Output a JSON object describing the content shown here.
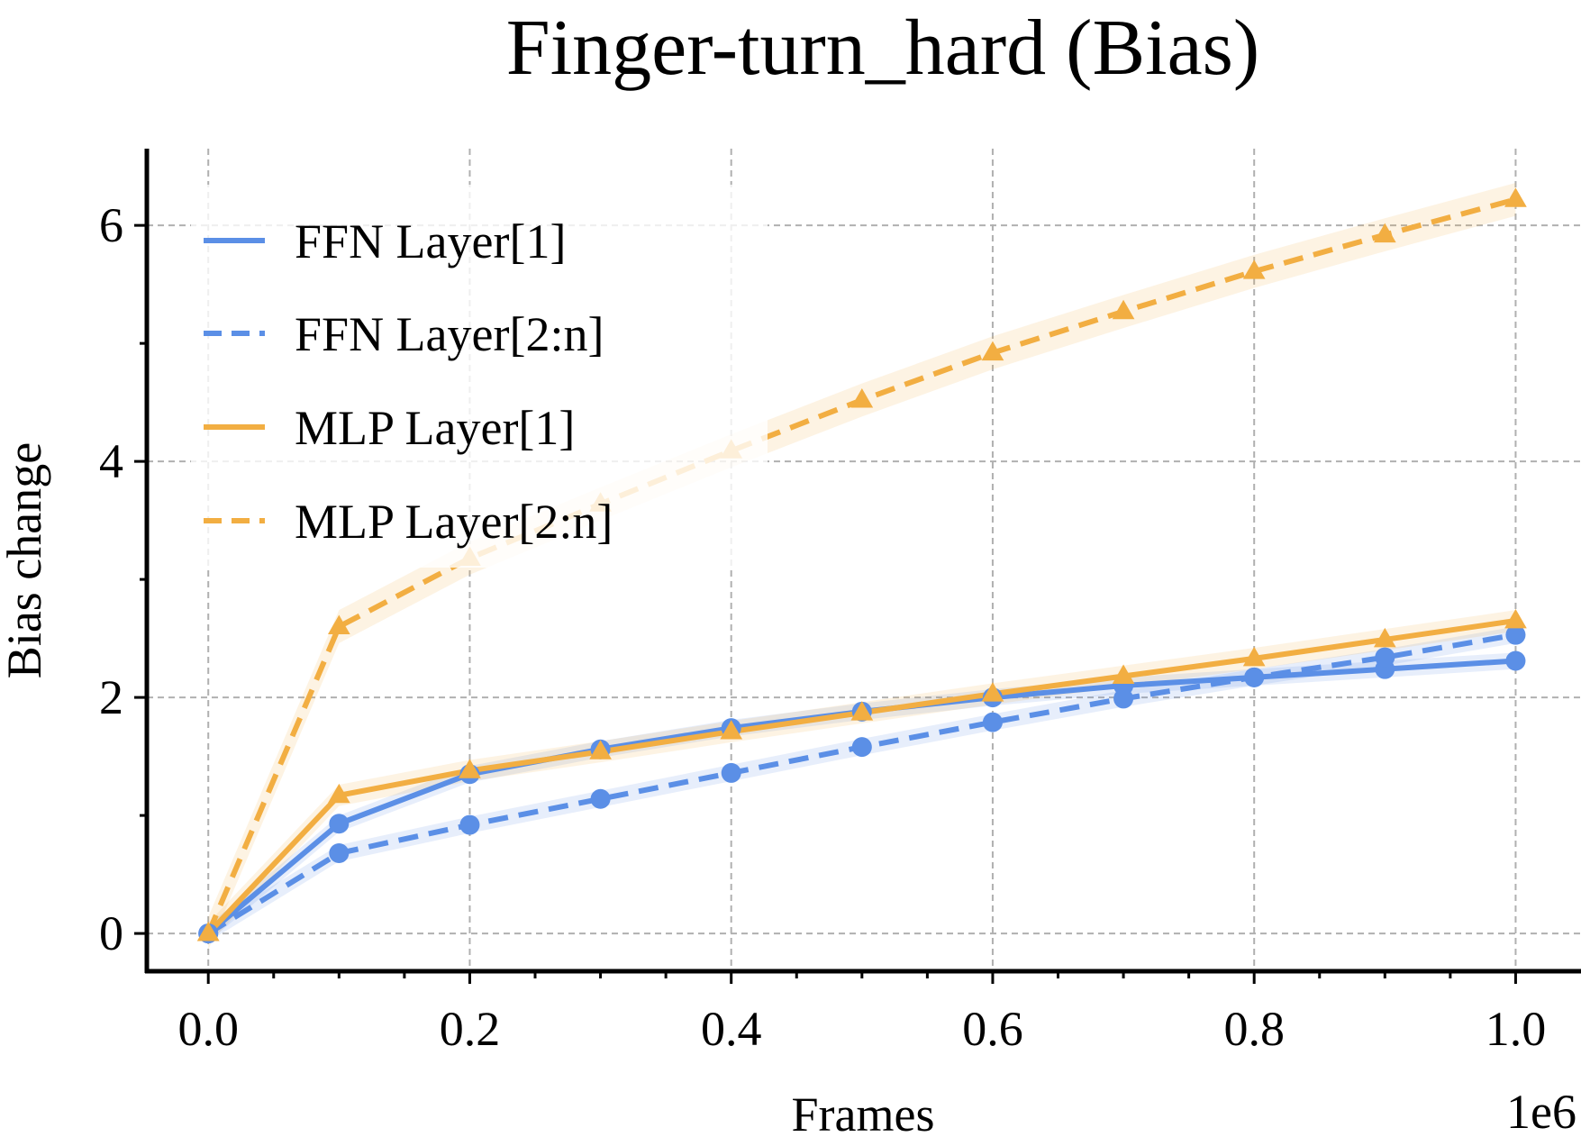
{
  "chart_data": {
    "type": "line",
    "title": "Finger-turn_hard (Bias)",
    "xlabel": "Frames",
    "ylabel": "Bias change",
    "x_offset_label": "1e6",
    "xlim": [
      -0.047,
      1.05
    ],
    "ylim": [
      -0.32,
      6.65
    ],
    "x_ticks": [
      0.0,
      0.2,
      0.4,
      0.6,
      0.8,
      1.0
    ],
    "x_tick_labels": [
      "0.0",
      "0.2",
      "0.4",
      "0.6",
      "0.8",
      "1.0"
    ],
    "x_minor_ticks": [
      0.05,
      0.1,
      0.15,
      0.25,
      0.3,
      0.35,
      0.45,
      0.5,
      0.55,
      0.65,
      0.7,
      0.75,
      0.85,
      0.9,
      0.95
    ],
    "y_ticks": [
      0,
      2,
      4,
      6
    ],
    "y_tick_labels": [
      "0",
      "2",
      "4",
      "6"
    ],
    "y_minor_ticks": [
      1,
      3,
      5
    ],
    "grid": true,
    "legend_position": "top-left",
    "x": [
      0.0,
      0.1,
      0.2,
      0.3,
      0.4,
      0.5,
      0.6,
      0.7,
      0.8,
      0.9,
      1.0
    ],
    "series": [
      {
        "name": "FFN Layer[1]",
        "color": "#5b8fe6",
        "linestyle": "solid",
        "marker": "circle",
        "values": [
          0.0,
          0.93,
          1.35,
          1.56,
          1.74,
          1.88,
          2.0,
          2.1,
          2.17,
          2.24,
          2.31
        ],
        "band": 0.07
      },
      {
        "name": "FFN Layer[2:n]",
        "color": "#5b8fe6",
        "linestyle": "dashed",
        "marker": "circle",
        "values": [
          0.0,
          0.68,
          0.92,
          1.14,
          1.36,
          1.58,
          1.79,
          1.99,
          2.17,
          2.34,
          2.53
        ],
        "band": 0.07
      },
      {
        "name": "MLP Layer[1]",
        "color": "#f2ae42",
        "linestyle": "solid",
        "marker": "triangle",
        "values": [
          0.0,
          1.17,
          1.38,
          1.54,
          1.71,
          1.87,
          2.03,
          2.18,
          2.33,
          2.49,
          2.65
        ],
        "band": 0.09
      },
      {
        "name": "MLP Layer[2:n]",
        "color": "#f2ae42",
        "linestyle": "dashed",
        "marker": "triangle",
        "values": [
          0.0,
          2.6,
          3.18,
          3.64,
          4.09,
          4.52,
          4.92,
          5.27,
          5.61,
          5.92,
          6.22
        ],
        "band": 0.14
      }
    ]
  }
}
